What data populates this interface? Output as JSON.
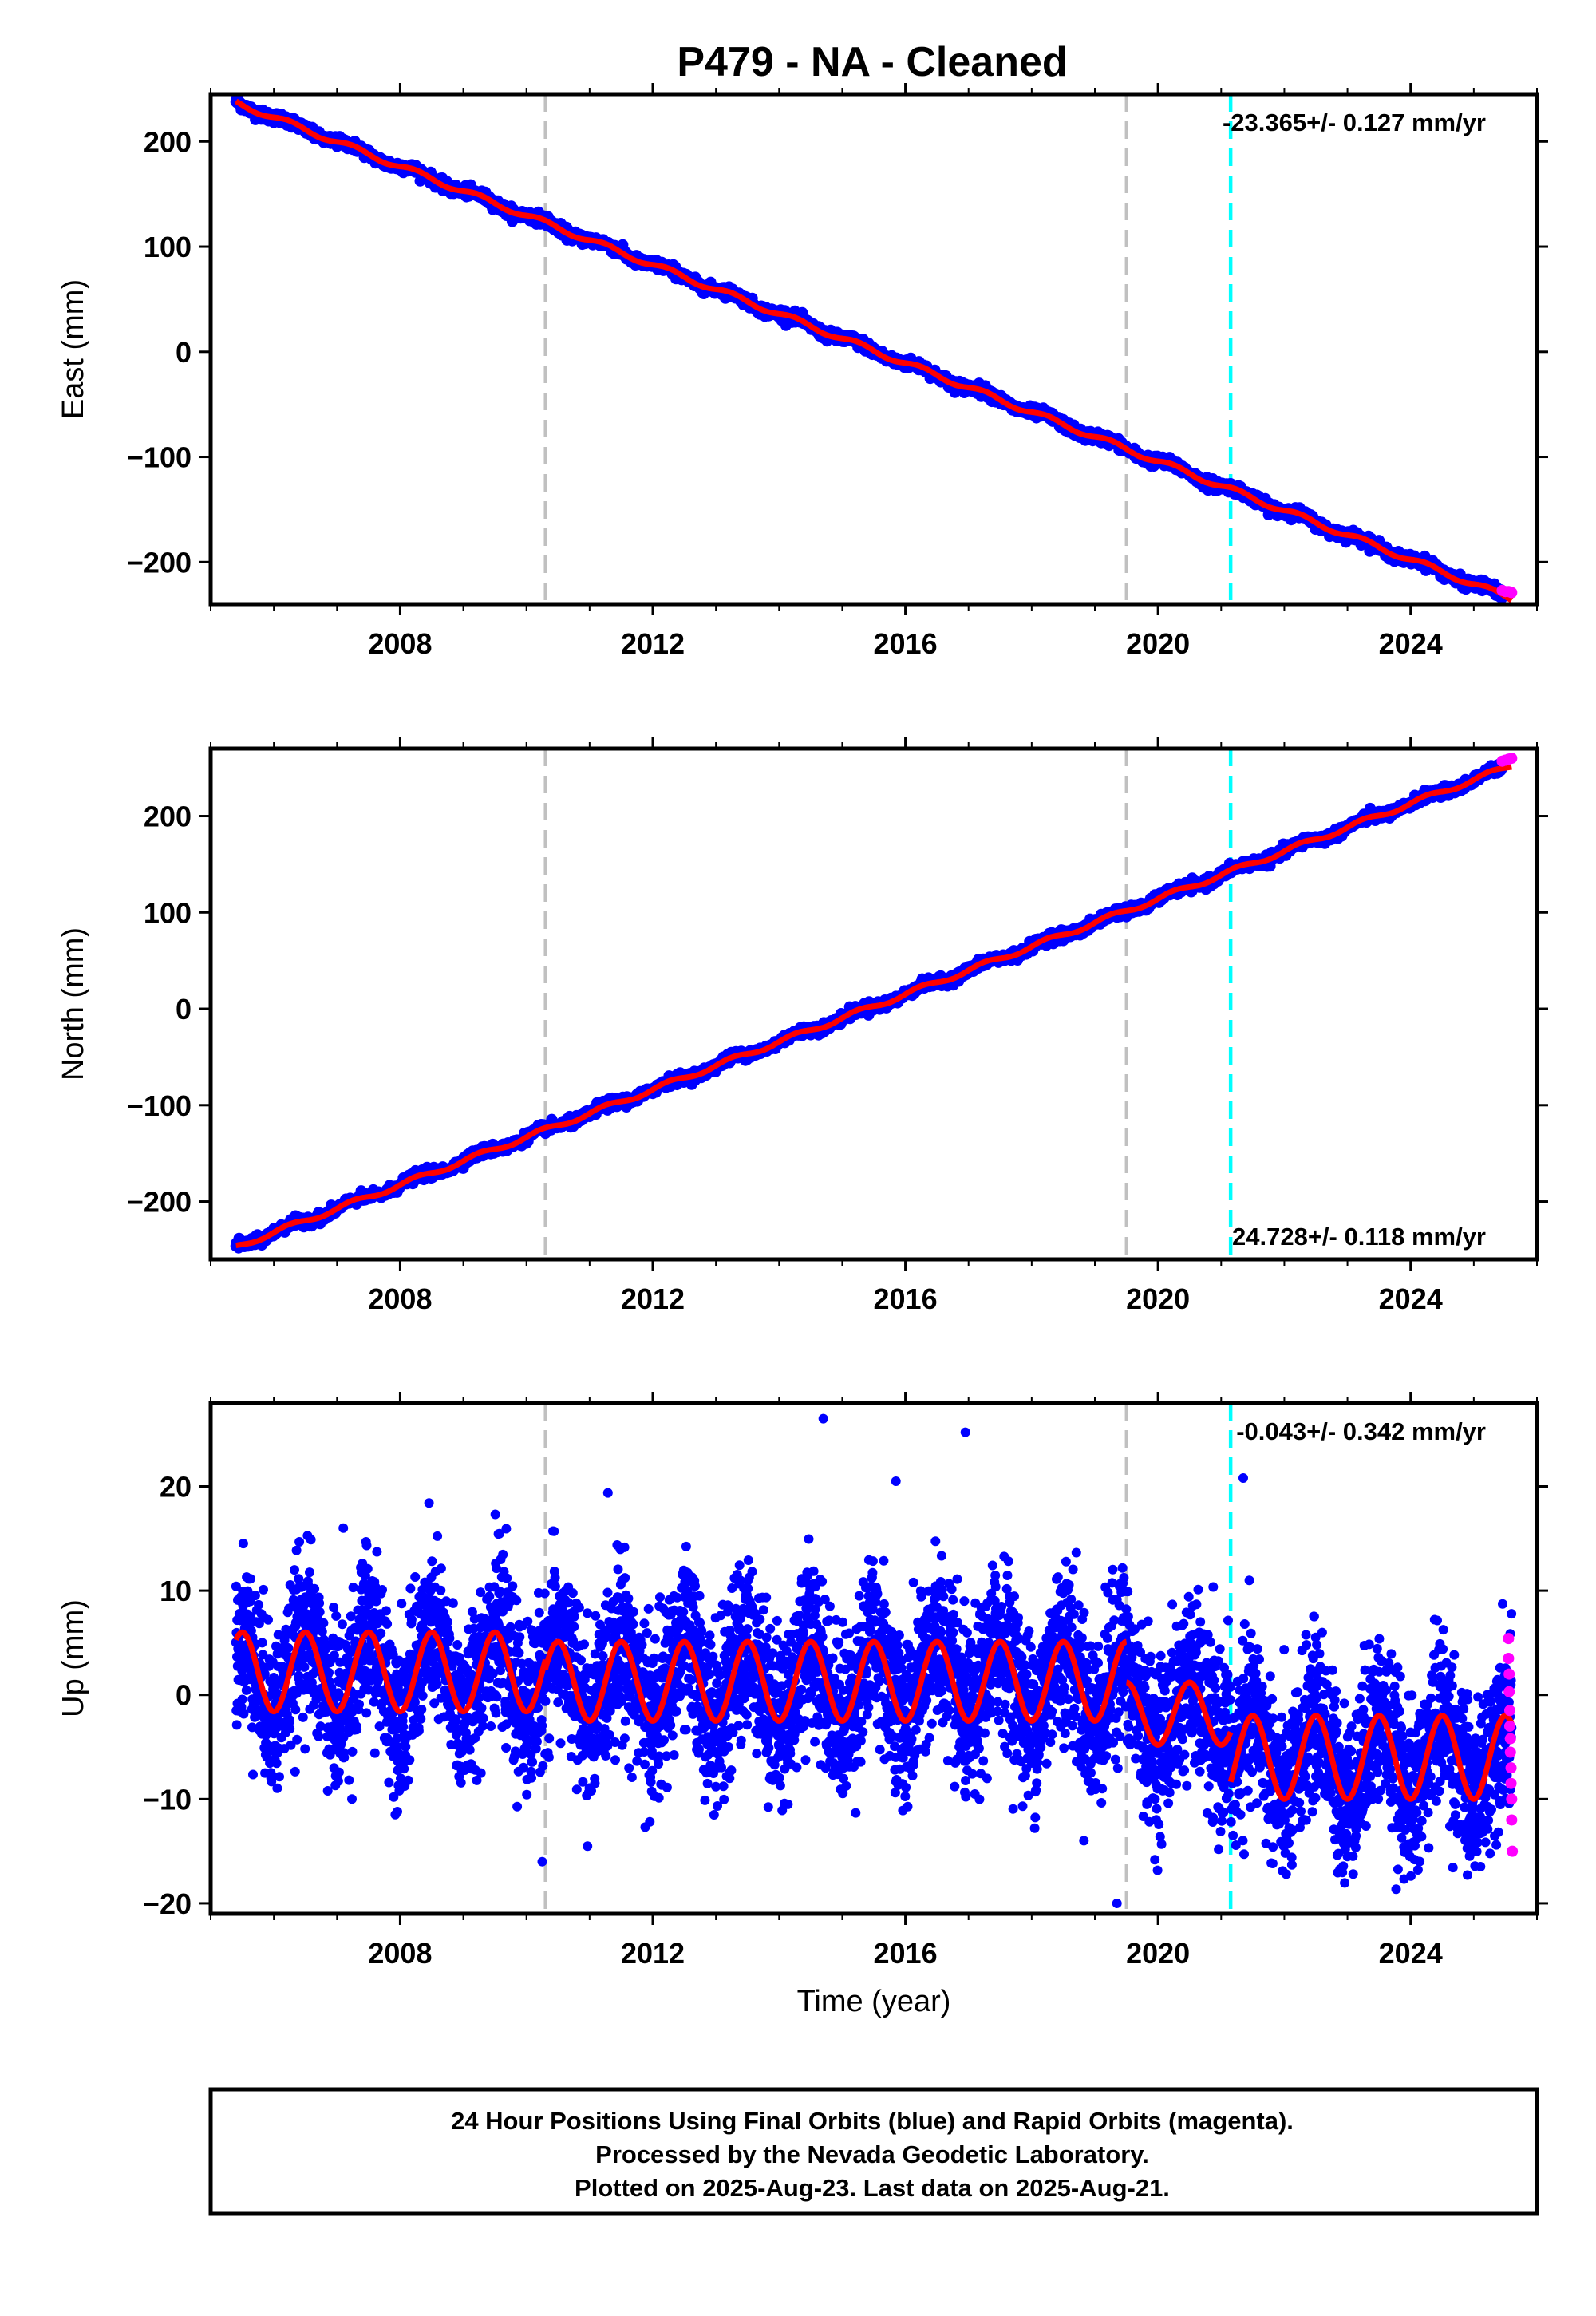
{
  "title": "P479  - NA - Cleaned",
  "colors": {
    "final": "#0000ff",
    "rapid": "#ff00ff",
    "model": "#ff0000",
    "break_gray": "#c0c0c0",
    "break_cyan": "#00ffff"
  },
  "chart_data": [
    {
      "type": "scatter",
      "ylabel": "East (mm)",
      "xlabel": "",
      "xlim": [
        2005.0,
        2026.0
      ],
      "ylim": [
        -240,
        245
      ],
      "yticks": [
        -200,
        -100,
        0,
        100,
        200
      ],
      "xticks": [
        2008,
        2012,
        2016,
        2020,
        2024
      ],
      "rate_label": "-23.365+/- 0.127 mm/yr",
      "rate_position": "top-right",
      "breaks_gray": [
        2010.3,
        2019.5
      ],
      "breaks_cyan": [
        2021.15
      ],
      "series": [
        {
          "name": "Final Orbits (blue)",
          "kind": "points",
          "trend": {
            "x0": 2005.4,
            "y0": 237,
            "rate": -23.365,
            "noise": 2.5
          }
        },
        {
          "name": "Rapid Orbits (magenta)",
          "kind": "points",
          "x": [
            2025.45,
            2025.5,
            2025.55,
            2025.6
          ],
          "y": [
            -227,
            -228,
            -228,
            -229
          ]
        },
        {
          "name": "Model",
          "kind": "line",
          "trend": {
            "x0": 2005.4,
            "y0": 237,
            "rate": -23.365
          }
        }
      ]
    },
    {
      "type": "scatter",
      "ylabel": "North (mm)",
      "xlabel": "",
      "xlim": [
        2005.0,
        2026.0
      ],
      "ylim": [
        -260,
        270
      ],
      "yticks": [
        -200,
        -100,
        0,
        100,
        200
      ],
      "xticks": [
        2008,
        2012,
        2016,
        2020,
        2024
      ],
      "rate_label": "24.728+/- 0.118 mm/yr",
      "rate_position": "bottom-right",
      "breaks_gray": [
        2010.3,
        2019.5
      ],
      "breaks_cyan": [
        2021.15
      ],
      "series": [
        {
          "name": "Final Orbits (blue)",
          "kind": "points",
          "trend": {
            "x0": 2005.4,
            "y0": -247,
            "rate": 24.728,
            "noise": 2.5
          }
        },
        {
          "name": "Rapid Orbits (magenta)",
          "kind": "points",
          "x": [
            2025.45,
            2025.5,
            2025.55,
            2025.6
          ],
          "y": [
            257,
            258,
            259,
            260
          ]
        },
        {
          "name": "Model",
          "kind": "line",
          "trend": {
            "x0": 2005.4,
            "y0": -247,
            "rate": 24.728
          }
        }
      ]
    },
    {
      "type": "scatter",
      "ylabel": "Up (mm)",
      "xlabel": "Time (year)",
      "xlim": [
        2005.0,
        2026.0
      ],
      "ylim": [
        -21,
        28
      ],
      "yticks": [
        -20,
        -10,
        0,
        10,
        20
      ],
      "xticks": [
        2008,
        2012,
        2016,
        2020,
        2024
      ],
      "rate_label": "-0.043+/- 0.342 mm/yr",
      "rate_position": "top-right",
      "breaks_gray": [
        2010.3,
        2019.5
      ],
      "breaks_cyan": [
        2021.15
      ],
      "series": [
        {
          "name": "Final Orbits (blue)",
          "kind": "points",
          "segments": [
            {
              "x0": 2005.4,
              "x1": 2010.3,
              "offset": 2.2,
              "amp": 3.8,
              "noise": 3.8
            },
            {
              "x0": 2010.3,
              "x1": 2019.5,
              "offset": 1.3,
              "amp": 3.8,
              "noise": 4.0
            },
            {
              "x0": 2019.5,
              "x1": 2021.15,
              "offset": -1.8,
              "amp": 3.0,
              "noise": 4.0
            },
            {
              "x0": 2021.15,
              "x1": 2025.6,
              "offset": -6.0,
              "amp": 4.0,
              "noise": 4.0
            }
          ],
          "outliers_x": [
            2014.7,
            2016.95,
            2021.35,
            2010.25,
            2019.35,
            2007.1,
            2015.85
          ],
          "outliers_y": [
            26.5,
            25.2,
            20.8,
            -16.0,
            -20.0,
            16.0,
            20.5
          ]
        },
        {
          "name": "Rapid Orbits (magenta)",
          "kind": "points",
          "x": [
            2025.55,
            2025.55,
            2025.56,
            2025.56,
            2025.57,
            2025.57,
            2025.58,
            2025.58,
            2025.59,
            2025.59,
            2025.6,
            2025.6,
            2025.61
          ],
          "y": [
            5.4,
            3.5,
            2.0,
            0.3,
            -1.5,
            -3.0,
            -4.2,
            -5.5,
            -7.0,
            -8.5,
            -10.0,
            -12.0,
            -15.0
          ]
        },
        {
          "name": "Model",
          "kind": "line",
          "segments": [
            {
              "x0": 2005.4,
              "x1": 2010.3,
              "offset": 2.2,
              "amp": 3.8
            },
            {
              "x0": 2010.3,
              "x1": 2019.5,
              "offset": 1.3,
              "amp": 3.8
            },
            {
              "x0": 2019.5,
              "x1": 2021.15,
              "offset": -1.8,
              "amp": 3.0
            },
            {
              "x0": 2021.15,
              "x1": 2025.6,
              "offset": -6.0,
              "amp": 4.0
            }
          ]
        }
      ]
    }
  ],
  "footer": {
    "line1": "24 Hour Positions Using Final Orbits (blue) and Rapid Orbits (magenta).",
    "line2": "Processed by the Nevada Geodetic Laboratory.",
    "line3": "Plotted on 2025-Aug-23. Last data on 2025-Aug-21."
  }
}
